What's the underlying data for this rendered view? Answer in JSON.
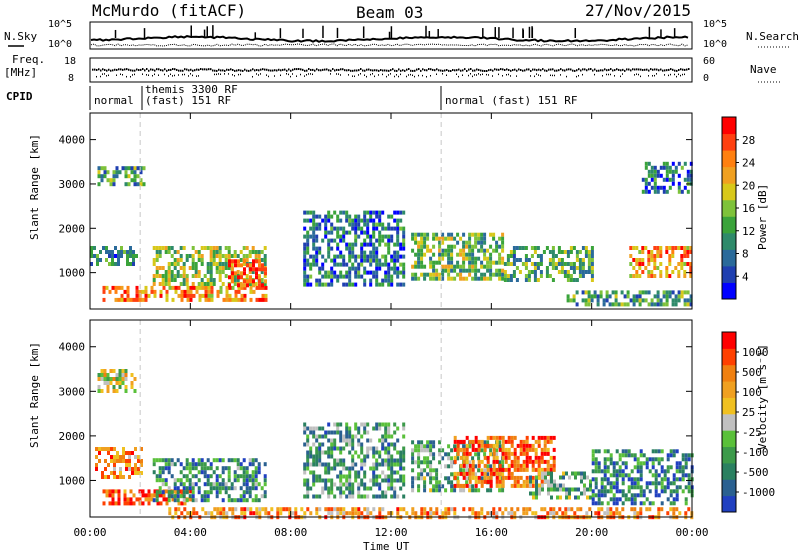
{
  "header": {
    "title": "McMurdo (fitACF)",
    "beam": "Beam 03",
    "date": "27/Nov/2015"
  },
  "side_labels": {
    "nsky": "N.Sky",
    "nsearch": "N.Search",
    "freq": "Freq.",
    "freq_unit": "[MHz]",
    "nave": "Nave",
    "cpid": "CPID"
  },
  "noise_panel": {
    "left_ticks": [
      "10^5",
      "10^0"
    ],
    "right_ticks": [
      "10^5",
      "10^0"
    ]
  },
  "freq_panel": {
    "left_ticks": [
      "18",
      "8"
    ],
    "right_ticks": [
      "60",
      "0"
    ]
  },
  "cpid_panel": {
    "segments": [
      {
        "label": "normal (fast) 151 RF"
      },
      {
        "label": "themis 3300 RF"
      },
      {
        "label": "normal (fast) 151 RF"
      }
    ],
    "left_label": "normal",
    "mid_line1": "themis 3300 RF",
    "mid_line2": "(fast) 151 RF",
    "right_label": "normal (fast) 151 RF"
  },
  "chart_data": [
    {
      "type": "heatmap",
      "title": "Power",
      "ylabel": "Slant Range [km]",
      "xlabel": "Time UT",
      "x_ticks": [
        "00:00",
        "04:00",
        "08:00",
        "12:00",
        "16:00",
        "20:00",
        "00:00"
      ],
      "y_ticks": [
        1000,
        2000,
        3000,
        4000
      ],
      "ylim": [
        180,
        4600
      ],
      "xlim_hours": [
        0,
        24
      ],
      "colorbar": {
        "label": "Power [dB]",
        "ticks": [
          "4",
          "8",
          "12",
          "16",
          "20",
          "24",
          "28"
        ],
        "colors": [
          "#0000ff",
          "#1f3fb0",
          "#2a6a9a",
          "#2e8a6a",
          "#3aa33a",
          "#7ec23a",
          "#d8c81a",
          "#f0a020",
          "#ff8010",
          "#ff4010",
          "#ff0000"
        ]
      },
      "regions": [
        {
          "t": [
            0.3,
            2.2
          ],
          "r": [
            3000,
            3400
          ],
          "level": 0.35
        },
        {
          "t": [
            0.0,
            1.8
          ],
          "r": [
            1150,
            1600
          ],
          "level": 0.3
        },
        {
          "t": [
            0.5,
            7.0
          ],
          "r": [
            400,
            700
          ],
          "level": 0.75
        },
        {
          "t": [
            2.5,
            7.0
          ],
          "r": [
            700,
            1600
          ],
          "level": 0.5
        },
        {
          "t": [
            5.5,
            7.0
          ],
          "r": [
            750,
            1300
          ],
          "level": 0.9
        },
        {
          "t": [
            8.5,
            12.5
          ],
          "r": [
            700,
            2400
          ],
          "level": 0.25
        },
        {
          "t": [
            12.8,
            16.5
          ],
          "r": [
            900,
            1900
          ],
          "level": 0.45
        },
        {
          "t": [
            16.5,
            20.0
          ],
          "r": [
            800,
            1600
          ],
          "level": 0.4
        },
        {
          "t": [
            19.0,
            24.0
          ],
          "r": [
            250,
            600
          ],
          "level": 0.35
        },
        {
          "t": [
            21.5,
            24.0
          ],
          "r": [
            900,
            1600
          ],
          "level": 0.75
        },
        {
          "t": [
            22.0,
            24.0
          ],
          "r": [
            2800,
            3500
          ],
          "level": 0.25
        }
      ]
    },
    {
      "type": "heatmap",
      "title": "Velocity",
      "ylabel": "Slant Range [km]",
      "xlabel": "Time UT",
      "x_ticks": [
        "00:00",
        "04:00",
        "08:00",
        "12:00",
        "16:00",
        "20:00",
        "00:00"
      ],
      "y_ticks": [
        1000,
        2000,
        3000,
        4000
      ],
      "ylim": [
        180,
        4600
      ],
      "xlim_hours": [
        0,
        24
      ],
      "colorbar": {
        "label": "Velocity [m s⁻¹]",
        "ticks": [
          "1000",
          "500",
          "100",
          "25",
          "-25",
          "-100",
          "-500",
          "-1000"
        ],
        "colors": [
          "#2040c0",
          "#2a6090",
          "#2a8060",
          "#3c9a4a",
          "#5ac03a",
          "#c0c0c0",
          "#f0c020",
          "#f0a020",
          "#f08010",
          "#ff4000",
          "#ff0000"
        ]
      },
      "regions": [
        {
          "t": [
            0.3,
            1.8
          ],
          "r": [
            3000,
            3500
          ],
          "level": 0.55
        },
        {
          "t": [
            0.2,
            2.0
          ],
          "r": [
            1050,
            1750
          ],
          "level": 0.75
        },
        {
          "t": [
            0.5,
            4.0
          ],
          "r": [
            500,
            800
          ],
          "level": 0.85
        },
        {
          "t": [
            2.5,
            7.0
          ],
          "r": [
            550,
            1500
          ],
          "level": 0.25
        },
        {
          "t": [
            8.5,
            12.5
          ],
          "r": [
            600,
            2300
          ],
          "level": 0.3
        },
        {
          "t": [
            12.8,
            16.5
          ],
          "r": [
            800,
            1900
          ],
          "level": 0.35
        },
        {
          "t": [
            14.5,
            18.5
          ],
          "r": [
            900,
            2000
          ],
          "level": 0.8
        },
        {
          "t": [
            17.5,
            20.0
          ],
          "r": [
            600,
            1200
          ],
          "level": 0.35
        },
        {
          "t": [
            20.0,
            24.0
          ],
          "r": [
            500,
            1700
          ],
          "level": 0.2
        },
        {
          "t": [
            3.0,
            24.0
          ],
          "r": [
            200,
            400
          ],
          "level": 0.7
        }
      ]
    }
  ]
}
